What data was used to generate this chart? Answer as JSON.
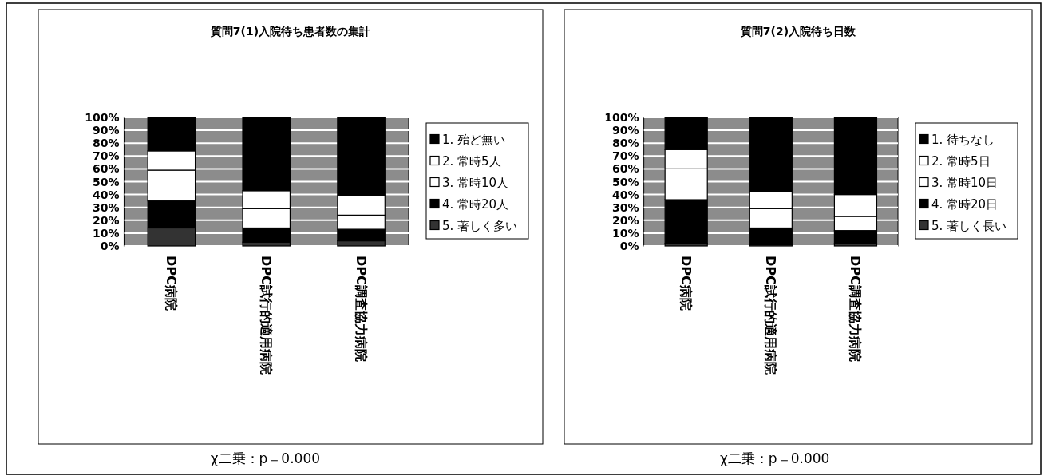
{
  "chart_data": [
    {
      "type": "bar",
      "title": "質問7(1)入院待ち患者数の集計",
      "stacked": true,
      "categories": [
        "DPC病院",
        "DPC試行的適用病院",
        "DPC調査協力病院"
      ],
      "ylim": [
        0,
        100
      ],
      "yticks": [
        {
          "value": 0,
          "label": "0%"
        },
        {
          "value": 10,
          "label": "10%"
        },
        {
          "value": 20,
          "label": "20%"
        },
        {
          "value": 30,
          "label": "30%"
        },
        {
          "value": 40,
          "label": "40%"
        },
        {
          "value": 50,
          "label": "50%"
        },
        {
          "value": 60,
          "label": "60%"
        },
        {
          "value": 70,
          "label": "70%"
        },
        {
          "value": 80,
          "label": "80%"
        },
        {
          "value": 90,
          "label": "90%"
        },
        {
          "value": 100,
          "label": "100%"
        }
      ],
      "grid": "y",
      "legend": "right",
      "series": [
        {
          "name": "5. 著しく多い",
          "color": "#333333",
          "values": [
            14,
            3,
            4
          ]
        },
        {
          "name": "4. 常時20人",
          "color": "#000000",
          "values": [
            21,
            11,
            9
          ]
        },
        {
          "name": "3. 常時10人",
          "color": "#ffffff",
          "values": [
            24,
            15,
            11
          ]
        },
        {
          "name": "2. 常時5人",
          "color": "#ffffff",
          "values": [
            15,
            14,
            15
          ]
        },
        {
          "name": "1. 殆ど無い",
          "color": "#000000",
          "values": [
            26,
            57,
            61
          ]
        }
      ],
      "annotations": [
        "χ二乗：p＝0.000"
      ]
    },
    {
      "type": "bar",
      "title": "質問7(2)入院待ち日数",
      "stacked": true,
      "categories": [
        "DPC病院",
        "DPC試行的適用病院",
        "DPC調査協力病院"
      ],
      "ylim": [
        0,
        100
      ],
      "yticks": [
        {
          "value": 0,
          "label": "0%"
        },
        {
          "value": 10,
          "label": "10%"
        },
        {
          "value": 20,
          "label": "20%"
        },
        {
          "value": 30,
          "label": "30%"
        },
        {
          "value": 40,
          "label": "40%"
        },
        {
          "value": 50,
          "label": "50%"
        },
        {
          "value": 60,
          "label": "60%"
        },
        {
          "value": 70,
          "label": "70%"
        },
        {
          "value": 80,
          "label": "80%"
        },
        {
          "value": 90,
          "label": "90%"
        },
        {
          "value": 100,
          "label": "100%"
        }
      ],
      "grid": "y",
      "legend": "right",
      "series": [
        {
          "name": "5. 著しく長い",
          "color": "#333333",
          "values": [
            2,
            1,
            2
          ]
        },
        {
          "name": "4. 常時20日",
          "color": "#000000",
          "values": [
            34,
            13,
            10
          ]
        },
        {
          "name": "3. 常時10日",
          "color": "#ffffff",
          "values": [
            24,
            15,
            11
          ]
        },
        {
          "name": "2. 常時5日",
          "color": "#ffffff",
          "values": [
            15,
            13,
            17
          ]
        },
        {
          "name": "1. 待ちなし",
          "color": "#000000",
          "values": [
            25,
            58,
            60
          ]
        }
      ],
      "annotations": [
        "χ二乗：p＝0.000"
      ]
    }
  ]
}
